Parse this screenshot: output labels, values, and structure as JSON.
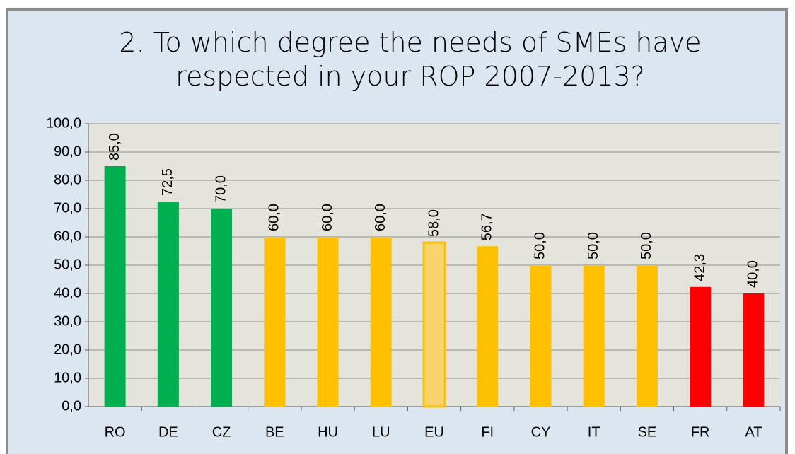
{
  "chart_data": {
    "type": "bar",
    "title": "2. To which degree the needs of SMEs have respected in your ROP 2007-2013?",
    "categories": [
      "RO",
      "DE",
      "CZ",
      "BE",
      "HU",
      "LU",
      "EU",
      "FI",
      "CY",
      "IT",
      "SE",
      "FR",
      "AT"
    ],
    "values": [
      85,
      72.5,
      70,
      60,
      60,
      60,
      58,
      56.7,
      50,
      50,
      50,
      42.3,
      40
    ],
    "value_labels": [
      "85,0",
      "72,5",
      "70,0",
      "60,0",
      "60,0",
      "60,0",
      "58,0",
      "56,7",
      "50,0",
      "50,0",
      "50,0",
      "42,3",
      "40,0"
    ],
    "colors": [
      "#00b050",
      "#00b050",
      "#00b050",
      "#ffc000",
      "#ffc000",
      "#ffc000",
      "#f9d46c",
      "#ffc000",
      "#ffc000",
      "#ffc000",
      "#ffc000",
      "#ff0000",
      "#ff0000"
    ],
    "ylim": [
      0,
      100
    ],
    "yticks": [
      {
        "value": 0,
        "label": "0,0"
      },
      {
        "value": 10,
        "label": "10,0"
      },
      {
        "value": 20,
        "label": "20,0"
      },
      {
        "value": 30,
        "label": "30,0"
      },
      {
        "value": 40,
        "label": "40,0"
      },
      {
        "value": 50,
        "label": "50,0"
      },
      {
        "value": 60,
        "label": "60,0"
      },
      {
        "value": 70,
        "label": "70,0"
      },
      {
        "value": 80,
        "label": "80,0"
      },
      {
        "value": 90,
        "label": "90,0"
      },
      {
        "value": 100,
        "label": "100,0"
      }
    ],
    "grid": true
  }
}
